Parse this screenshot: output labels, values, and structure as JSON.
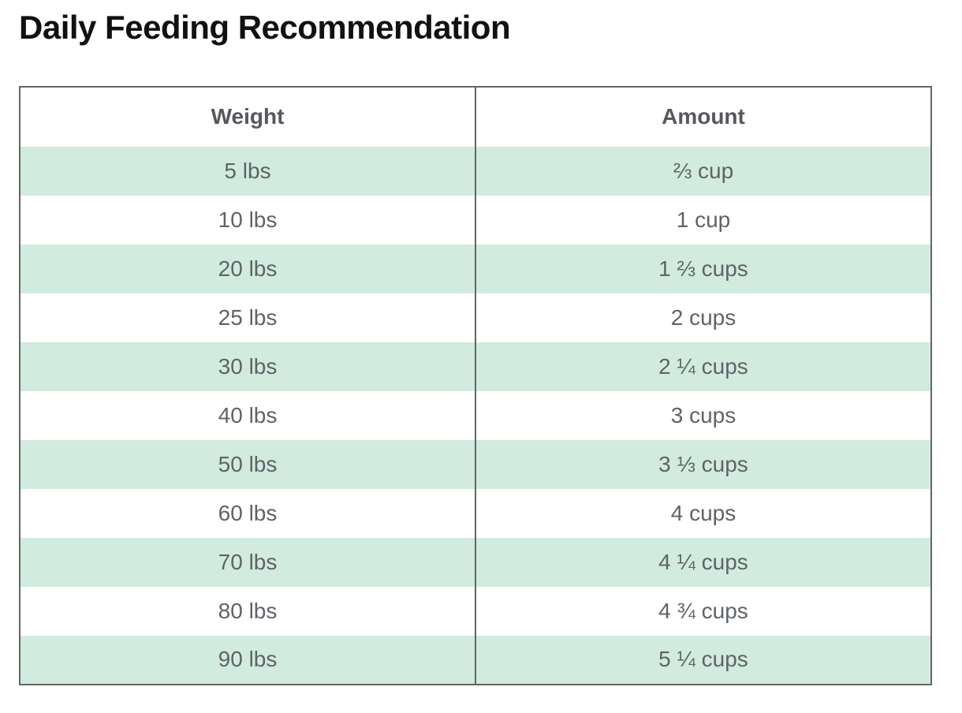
{
  "title": "Daily Feeding Recommendation",
  "table": {
    "headers": {
      "weight": "Weight",
      "amount": "Amount"
    },
    "rows": [
      {
        "weight": "5 lbs",
        "amount": "⅔ cup"
      },
      {
        "weight": "10 lbs",
        "amount": "1 cup"
      },
      {
        "weight": "20 lbs",
        "amount": "1 ⅔ cups"
      },
      {
        "weight": "25 lbs",
        "amount": "2 cups"
      },
      {
        "weight": "30 lbs",
        "amount": "2 ¼ cups"
      },
      {
        "weight": "40 lbs",
        "amount": "3 cups"
      },
      {
        "weight": "50 lbs",
        "amount": "3 ⅓ cups"
      },
      {
        "weight": "60 lbs",
        "amount": "4 cups"
      },
      {
        "weight": "70 lbs",
        "amount": "4 ¼ cups"
      },
      {
        "weight": "80 lbs",
        "amount": "4 ¾ cups"
      },
      {
        "weight": "90 lbs",
        "amount": "5 ¼ cups"
      }
    ]
  },
  "colors": {
    "stripe_green": "#d2ebdf",
    "border_gray": "#636567",
    "cell_text": "#5f6368",
    "header_text": "#55585c",
    "title_text": "#111111",
    "background": "#ffffff"
  },
  "chart_data": {
    "type": "table",
    "title": "Daily Feeding Recommendation",
    "columns": [
      "Weight",
      "Amount"
    ],
    "rows": [
      [
        "5 lbs",
        "⅔ cup"
      ],
      [
        "10 lbs",
        "1 cup"
      ],
      [
        "20 lbs",
        "1 ⅔ cups"
      ],
      [
        "25 lbs",
        "2 cups"
      ],
      [
        "30 lbs",
        "2 ¼ cups"
      ],
      [
        "40 lbs",
        "3 cups"
      ],
      [
        "50 lbs",
        "3 ⅓ cups"
      ],
      [
        "60 lbs",
        "4 cups"
      ],
      [
        "70 lbs",
        "4 ¼ cups"
      ],
      [
        "80 lbs",
        "4 ¾ cups"
      ],
      [
        "90 lbs",
        "5 ¼ cups"
      ]
    ],
    "layout": {
      "striped": true,
      "stripe_starts_on_first_data_row": true,
      "column_alignment": [
        "center",
        "center"
      ]
    }
  }
}
